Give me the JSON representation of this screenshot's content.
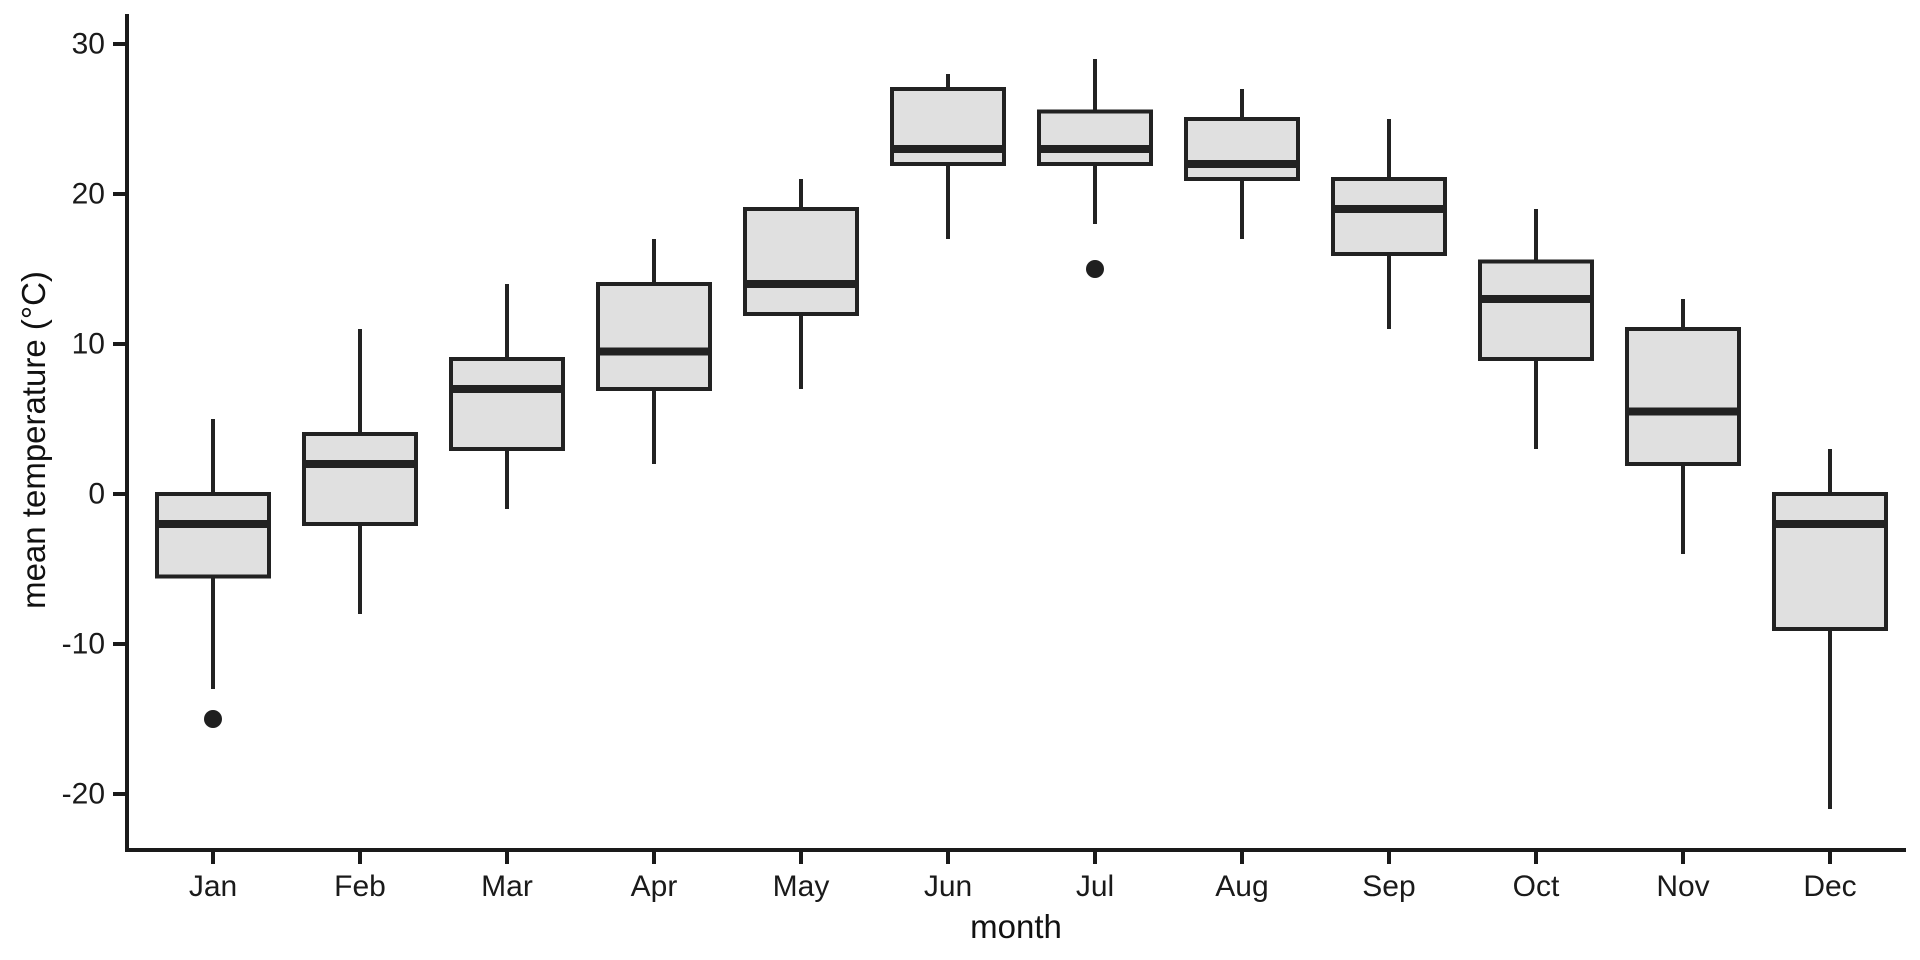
{
  "figure": {
    "background": "#ffffff"
  },
  "chart_data": {
    "type": "boxplot",
    "title": "",
    "xlabel": "month",
    "ylabel": "mean temperature (°C)",
    "categories": [
      "Jan",
      "Feb",
      "Mar",
      "Apr",
      "May",
      "Jun",
      "Jul",
      "Aug",
      "Sep",
      "Oct",
      "Nov",
      "Dec"
    ],
    "y_ticks": [
      30,
      20,
      10,
      0,
      -10,
      -20
    ],
    "ylim": [
      -23.7,
      32
    ],
    "grid": "off",
    "legend": "none",
    "series": [
      {
        "month": "Jan",
        "whisker_low": -13,
        "q1": -5.5,
        "median": -2,
        "q3": 0,
        "whisker_high": 5,
        "outliers": [
          -15
        ]
      },
      {
        "month": "Feb",
        "whisker_low": -8,
        "q1": -2,
        "median": 2,
        "q3": 4,
        "whisker_high": 11,
        "outliers": []
      },
      {
        "month": "Mar",
        "whisker_low": -1,
        "q1": 3,
        "median": 7,
        "q3": 9,
        "whisker_high": 14,
        "outliers": []
      },
      {
        "month": "Apr",
        "whisker_low": 2,
        "q1": 7,
        "median": 9.5,
        "q3": 14,
        "whisker_high": 17,
        "outliers": []
      },
      {
        "month": "May",
        "whisker_low": 7,
        "q1": 12,
        "median": 14,
        "q3": 19,
        "whisker_high": 21,
        "outliers": []
      },
      {
        "month": "Jun",
        "whisker_low": 17,
        "q1": 22,
        "median": 23,
        "q3": 27,
        "whisker_high": 28,
        "outliers": []
      },
      {
        "month": "Jul",
        "whisker_low": 18,
        "q1": 22,
        "median": 23,
        "q3": 25.5,
        "whisker_high": 29,
        "outliers": [
          15
        ]
      },
      {
        "month": "Aug",
        "whisker_low": 17,
        "q1": 21,
        "median": 22,
        "q3": 25,
        "whisker_high": 27,
        "outliers": []
      },
      {
        "month": "Sep",
        "whisker_low": 11,
        "q1": 16,
        "median": 19,
        "q3": 21,
        "whisker_high": 25,
        "outliers": []
      },
      {
        "month": "Oct",
        "whisker_low": 3,
        "q1": 9,
        "median": 13,
        "q3": 15.5,
        "whisker_high": 19,
        "outliers": []
      },
      {
        "month": "Nov",
        "whisker_low": -4,
        "q1": 2,
        "median": 5.5,
        "q3": 11,
        "whisker_high": 13,
        "outliers": []
      },
      {
        "month": "Dec",
        "whisker_low": -21,
        "q1": -9,
        "median": -2,
        "q3": 0,
        "whisker_high": 3,
        "outliers": []
      }
    ],
    "colors": {
      "box_fill": "#e0e0e0",
      "line": "#222222",
      "outlier": "#1f1f1f",
      "axis": "#1a1a1a"
    }
  }
}
